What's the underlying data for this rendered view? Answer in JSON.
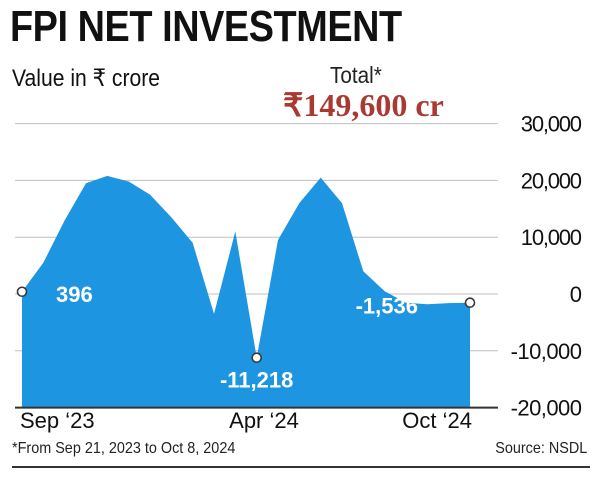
{
  "header": {
    "title": "FPI NET INVESTMENT",
    "subtitle": "Value in ₹ crore",
    "total_label": "Total*",
    "total_value": "₹149,600 cr"
  },
  "footer": {
    "footnote": "*From Sep 21, 2023 to Oct 8, 2024",
    "source": "Source: NSDL"
  },
  "colors": {
    "area": "#1e95e0",
    "grid": "#bfbfbf",
    "total": "#a83a32",
    "text": "#111111"
  },
  "chart_data": {
    "type": "area",
    "title": "FPI NET INVESTMENT",
    "ylabel": "Value in ₹ crore",
    "xlabel": "",
    "ylim": [
      -20000,
      30000
    ],
    "yticks": [
      30000,
      20000,
      10000,
      0,
      -10000,
      -20000
    ],
    "ytick_labels": [
      "30,000",
      "20,000",
      "10,000",
      "0",
      "-10,000",
      "-20,000"
    ],
    "x_tick_labels": [
      {
        "label": "Sep ‘23",
        "index": 0
      },
      {
        "label": "Apr ‘24",
        "index": 11
      },
      {
        "label": "Oct ‘24",
        "index": 21
      }
    ],
    "series": [
      {
        "name": "FPI net investment",
        "values": [
          396,
          5500,
          13000,
          19500,
          20800,
          19800,
          17500,
          13500,
          9000,
          -3500,
          11000,
          -11218,
          9500,
          16000,
          20500,
          16000,
          4000,
          500,
          -1536,
          -1800,
          -1600,
          -1536
        ]
      }
    ],
    "annotations": [
      {
        "text": "396",
        "index": 0,
        "value": 396
      },
      {
        "text": "-11,218",
        "index": 11,
        "value": -11218
      },
      {
        "text": "-1,536",
        "index": 21,
        "value": -1536
      }
    ],
    "grid": true
  }
}
